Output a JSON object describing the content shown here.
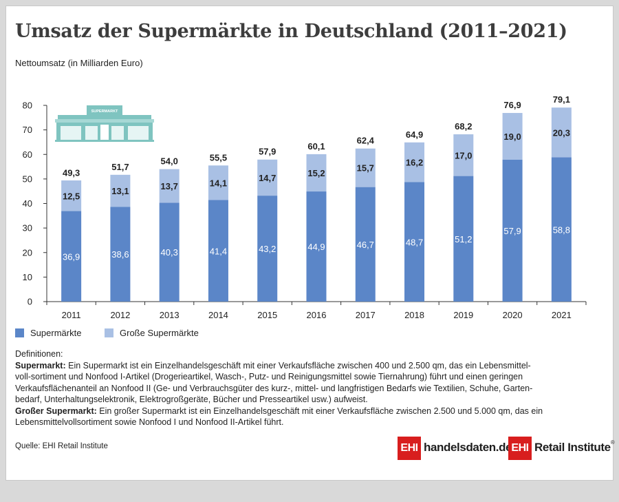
{
  "title": "Umsatz der Supermärkte in Deutschland (2011–2021)",
  "chart_data": {
    "type": "bar",
    "stacked": true,
    "ylabel": "Nettoumsatz (in Milliarden Euro)",
    "ylim": [
      0,
      80
    ],
    "yticks": [
      "0",
      "10",
      "20",
      "30",
      "40",
      "50",
      "60",
      "70",
      "80"
    ],
    "categories": [
      "2011",
      "2012",
      "2013",
      "2014",
      "2015",
      "2016",
      "2017",
      "2018",
      "2019",
      "2020",
      "2021"
    ],
    "series": [
      {
        "name": "Supermärkte",
        "color": "#5b86c8",
        "values": [
          36.9,
          38.6,
          40.3,
          41.4,
          43.2,
          44.9,
          46.7,
          48.7,
          51.2,
          57.9,
          58.8
        ],
        "labels": [
          "36,9",
          "38,6",
          "40,3",
          "41,4",
          "43,2",
          "44,9",
          "46,7",
          "48,7",
          "51,2",
          "57,9",
          "58,8"
        ]
      },
      {
        "name": "Große Supermärkte",
        "color": "#a9c0e4",
        "values": [
          12.5,
          13.1,
          13.7,
          14.1,
          14.7,
          15.2,
          15.7,
          16.2,
          17.0,
          19.0,
          20.3
        ],
        "labels": [
          "12,5",
          "13,1",
          "13,7",
          "14,1",
          "14,7",
          "15,2",
          "15,7",
          "16,2",
          "17,0",
          "19,0",
          "20,3"
        ]
      }
    ],
    "totals": [
      49.3,
      51.7,
      54.0,
      55.5,
      57.9,
      60.1,
      62.4,
      64.9,
      68.2,
      76.9,
      79.1
    ],
    "total_labels": [
      "49,3",
      "51,7",
      "54,0",
      "55,5",
      "57,9",
      "60,1",
      "62,4",
      "64,9",
      "68,2",
      "76,9",
      "79,1"
    ],
    "grid": false,
    "legend_position": "bottom-left"
  },
  "illustration": {
    "icon": "supermarket-icon",
    "sign_text": "SUPERMARKT",
    "color": "#7fc4c0"
  },
  "definitions": {
    "heading": "Definitionen:",
    "items": [
      {
        "term": "Supermarkt:",
        "lines": [
          " Ein Supermarkt ist ein Einzelhandelsgeschäft mit einer Verkaufsfläche zwischen 400 und 2.500 qm, das ein Lebensmittel-",
          "voll-sortiment und Nonfood I-Artikel (Drogerieartikel, Wasch-, Putz- und Reinigungsmittel sowie Tiernahrung) führt und einen geringen",
          "Verkaufsflächenanteil an Nonfood II (Ge- und Verbrauchsgüter des kurz-, mittel- und langfristigen Bedarfs wie Textilien, Schuhe, Garten-",
          "bedarf, Unterhaltungselektronik, Elektrogroßgeräte, Bücher und Presseartikel usw.) aufweist."
        ]
      },
      {
        "term": "Großer Supermarkt:",
        "lines": [
          " Ein großer Supermarkt ist ein Einzelhandelsgeschäft mit einer Verkaufsfläche zwischen 2.500 und 5.000 qm, das ein",
          "Lebensmittelvollsortiment sowie Nonfood I und Nonfood II-Artikel führt."
        ]
      }
    ]
  },
  "source": "Quelle: EHI Retail Institute",
  "logos": [
    {
      "mark": "EHI",
      "text": "handelsdaten.de",
      "color": "#d81e1e"
    },
    {
      "mark": "EHI",
      "text": "Retail Institute",
      "registered": "®",
      "color": "#d81e1e"
    }
  ]
}
